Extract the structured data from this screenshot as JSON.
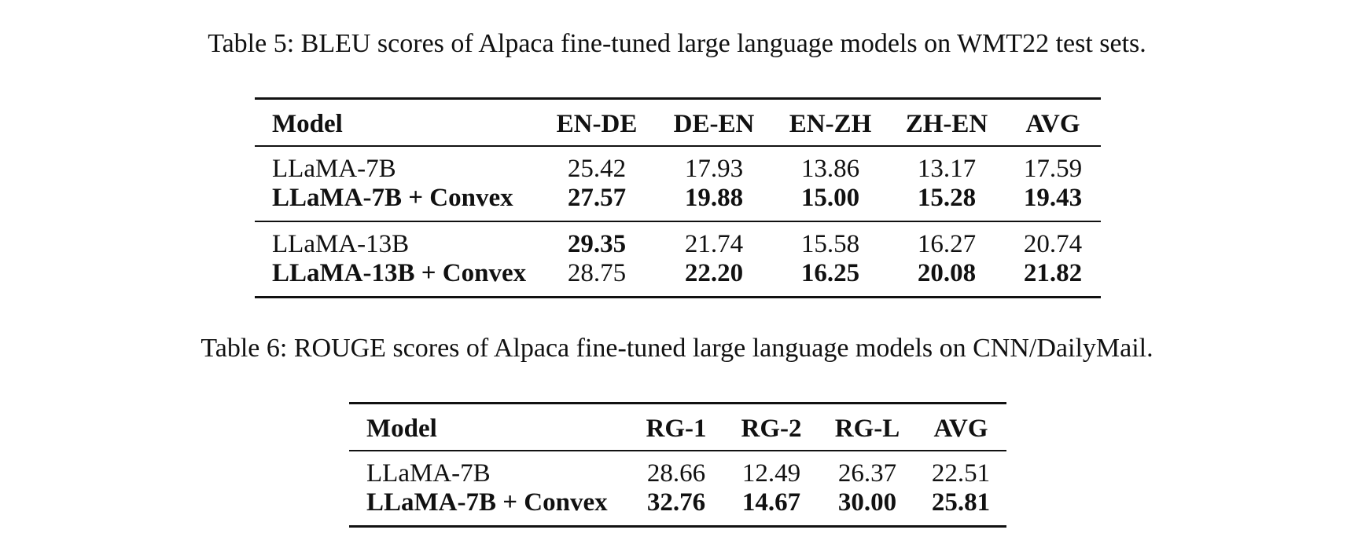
{
  "table5": {
    "caption": "Table 5: BLEU scores of Alpaca fine-tuned large language models on WMT22 test sets.",
    "headers": [
      "Model",
      "EN-DE",
      "DE-EN",
      "EN-ZH",
      "ZH-EN",
      "AVG"
    ],
    "rows": [
      [
        "LLaMA-7B",
        "25.42",
        "17.93",
        "13.86",
        "13.17",
        "17.59"
      ],
      [
        "LLaMA-7B + Convex",
        "27.57",
        "19.88",
        "15.00",
        "15.28",
        "19.43"
      ],
      [
        "LLaMA-13B",
        "29.35",
        "21.74",
        "15.58",
        "16.27",
        "20.74"
      ],
      [
        "LLaMA-13B + Convex",
        "28.75",
        "22.20",
        "16.25",
        "20.08",
        "21.82"
      ]
    ]
  },
  "table6": {
    "caption": "Table 6: ROUGE scores of Alpaca fine-tuned large language models on CNN/DailyMail.",
    "headers": [
      "Model",
      "RG-1",
      "RG-2",
      "RG-L",
      "AVG"
    ],
    "rows": [
      [
        "LLaMA-7B",
        "28.66",
        "12.49",
        "26.37",
        "22.51"
      ],
      [
        "LLaMA-7B + Convex",
        "32.76",
        "14.67",
        "30.00",
        "25.81"
      ]
    ]
  }
}
